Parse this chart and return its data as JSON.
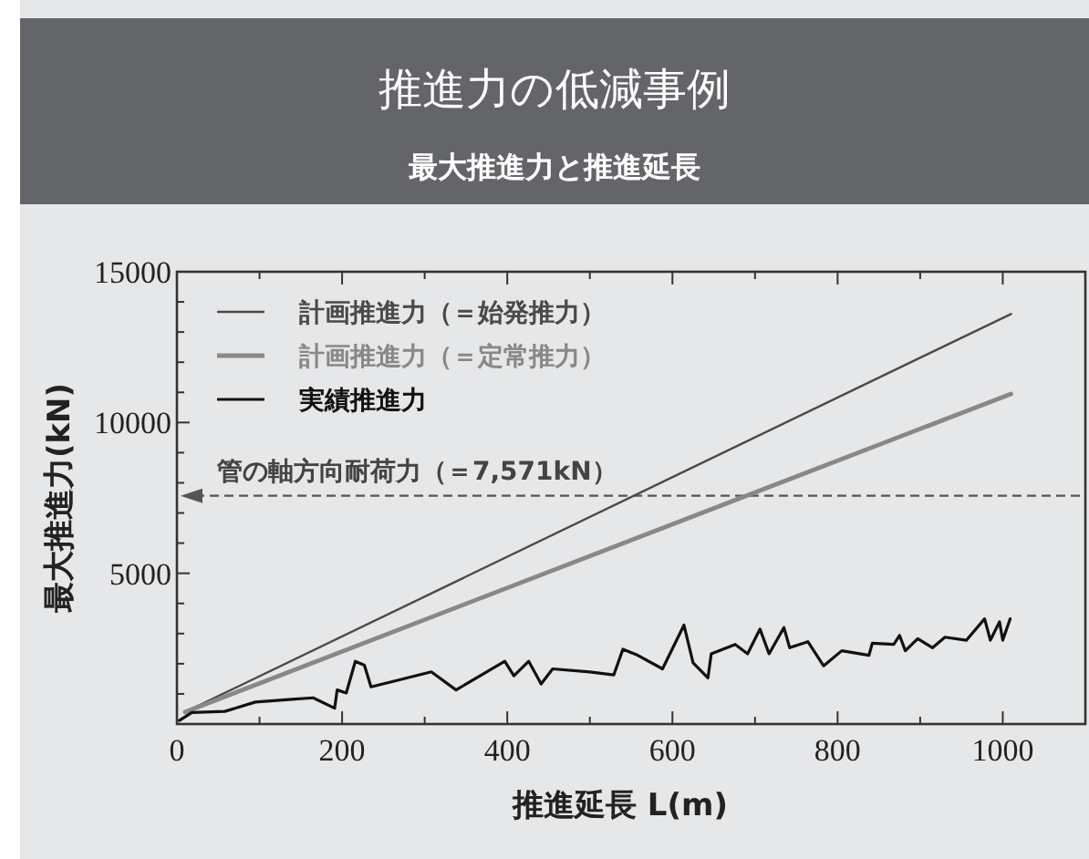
{
  "chart_data": {
    "type": "line",
    "title": "推進力の低減事例",
    "subtitle": "最大推進力と推進延長",
    "xlabel": "推進延長 L(m)",
    "ylabel": "最大推進力(kN)",
    "xlim": [
      0,
      1100
    ],
    "xticks": [
      0,
      {
        "value": 100,
        "label": null
      },
      200,
      {
        "value": 300,
        "label": null
      },
      400,
      {
        "value": 500,
        "label": null
      },
      600,
      {
        "value": 700,
        "label": null
      },
      800,
      {
        "value": 900,
        "label": null
      },
      1000,
      {
        "value": 1100,
        "label": null
      }
    ],
    "ylim": [
      0,
      15000
    ],
    "yticks": [
      {
        "value": 1000,
        "label": null
      },
      {
        "value": 2000,
        "label": null
      },
      {
        "value": 3000,
        "label": null
      },
      {
        "value": 4000,
        "label": null
      },
      5000,
      {
        "value": 6000,
        "label": null
      },
      {
        "value": 7000,
        "label": null
      },
      {
        "value": 8000,
        "label": null
      },
      {
        "value": 9000,
        "label": null
      },
      10000,
      {
        "value": 11000,
        "label": null
      },
      {
        "value": 12000,
        "label": null
      },
      {
        "value": 13000,
        "label": null
      },
      {
        "value": 14000,
        "label": null
      },
      15000
    ],
    "legend": "top left",
    "grid": false,
    "series": [
      {
        "name": "計画推進力（＝始発推力）",
        "color": "#4a4a4a",
        "x": [
          10,
          1010
        ],
        "values": [
          400,
          13600
        ]
      },
      {
        "name": "計画推進力（＝定常推力）",
        "color": "#888888",
        "x": [
          10,
          1010
        ],
        "values": [
          400,
          10950
        ]
      },
      {
        "name": "実績推進力",
        "color": "#111111",
        "x": [
          3,
          18,
          58,
          95,
          143,
          165,
          191,
          194,
          205,
          216,
          227,
          235,
          264,
          308,
          338,
          367,
          397,
          408,
          426,
          441,
          455,
          500,
          529,
          540,
          558,
          588,
          614,
          625,
          643,
          647,
          676,
          691,
          706,
          717,
          735,
          742,
          764,
          783,
          805,
          838,
          842,
          868,
          875,
          882,
          897,
          915,
          930,
          956,
          978,
          985,
          996,
          1000,
          1009
        ],
        "values": [
          120,
          380,
          420,
          730,
          830,
          870,
          525,
          1130,
          1030,
          2080,
          1950,
          1230,
          1430,
          1730,
          1130,
          1600,
          2080,
          1600,
          2080,
          1330,
          1830,
          1730,
          1630,
          2480,
          2280,
          1830,
          3280,
          2030,
          1530,
          2330,
          2640,
          2330,
          3150,
          2330,
          3200,
          2530,
          2730,
          1930,
          2430,
          2280,
          2680,
          2640,
          2940,
          2430,
          2830,
          2530,
          2880,
          2780,
          3490,
          2780,
          3390,
          2780,
          3490
        ]
      }
    ],
    "ref_lines": [
      {
        "axis": "y",
        "value": 7571,
        "label": "管の軸方向耐荷力（＝7,571kN）",
        "line_style": "dashed",
        "color": "#555555"
      }
    ]
  }
}
